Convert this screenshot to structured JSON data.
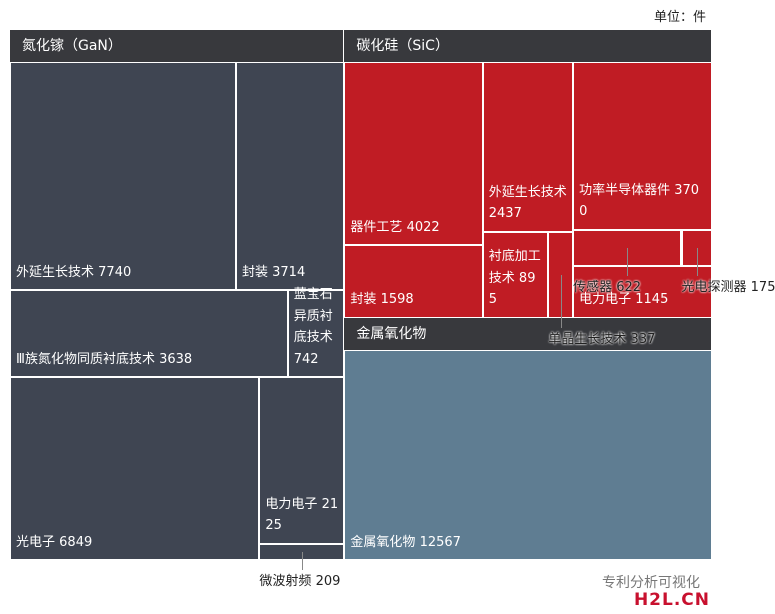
{
  "unit_label": "单位：件",
  "chart_data": {
    "type": "treemap",
    "groups": [
      {
        "name": "氮化镓（GaN）",
        "color": "#3f4552",
        "children": [
          {
            "name": "外延生长技术",
            "value": 7740
          },
          {
            "name": "封装",
            "value": 3714
          },
          {
            "name": "Ⅲ族氮化物同质衬底技术",
            "value": 3638
          },
          {
            "name": "蓝宝石异质衬底技术",
            "value": 742
          },
          {
            "name": "光电子",
            "value": 6849
          },
          {
            "name": "电力电子",
            "value": 2125
          },
          {
            "name": "微波射频",
            "value": 209
          }
        ]
      },
      {
        "name": "碳化硅（SiC）",
        "color": "#c01c24",
        "children": [
          {
            "name": "器件工艺",
            "value": 4022
          },
          {
            "name": "外延生长技术",
            "value": 2437
          },
          {
            "name": "功率半导体器件",
            "value": 3700
          },
          {
            "name": "传感器",
            "value": 622
          },
          {
            "name": "封装",
            "value": 1598
          },
          {
            "name": "衬底加工技术",
            "value": 895
          },
          {
            "name": "光电探测器",
            "value": 175
          },
          {
            "name": "电力电子",
            "value": 1145
          },
          {
            "name": "单晶生长技术",
            "value": 337
          }
        ]
      },
      {
        "name": "金属氧化物",
        "color": "#5f7d92",
        "children": [
          {
            "name": "金属氧化物",
            "value": 12567
          }
        ]
      }
    ]
  },
  "watermark": "专利分析可视化",
  "logo": "H2L.CN"
}
